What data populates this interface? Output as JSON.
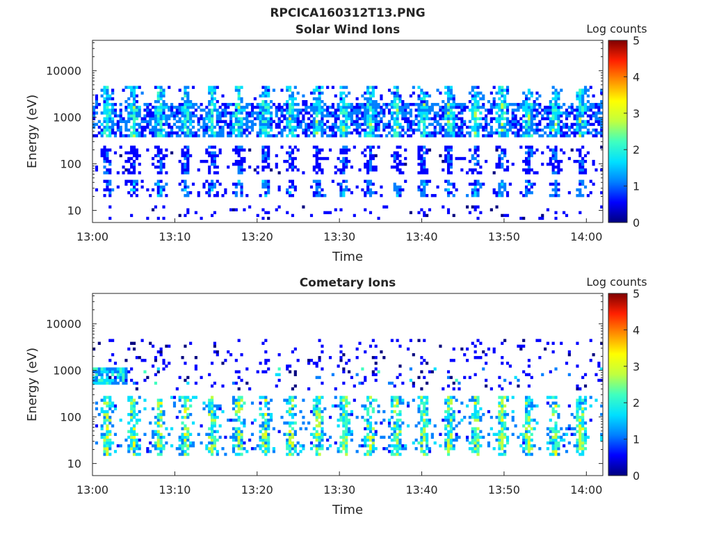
{
  "figure_title": "RPCICA160312T13.PNG",
  "colormap": [
    "#00007f",
    "#0000ff",
    "#0080ff",
    "#00e0ff",
    "#40ffbf",
    "#c0ff40",
    "#ffff00",
    "#ff9000",
    "#ff2000",
    "#7f0000"
  ],
  "chart_data": [
    {
      "type": "heatmap",
      "title": "Solar Wind Ions",
      "xlabel": "Time",
      "ylabel": "Energy (eV)",
      "x_ticks": [
        "13:00",
        "13:10",
        "13:20",
        "13:30",
        "13:40",
        "13:50",
        "14:00"
      ],
      "y_ticks": [
        "10",
        "100",
        "1000",
        "10000"
      ],
      "y_scale": "log",
      "ylim": [
        5.5,
        45000
      ],
      "xlim": [
        "13:00",
        "14:02"
      ],
      "colorbar": {
        "label": "Log counts",
        "ticks": [
          "0",
          "1",
          "2",
          "3",
          "4",
          "5"
        ],
        "range": [
          0,
          5
        ]
      },
      "scan_period_min": 3.2,
      "bands": [
        {
          "energy_lo": 400,
          "energy_hi": 2000,
          "log_counts_peak": 2.5,
          "pattern": "persistent band with periodic brighter patches"
        },
        {
          "energy_lo": 1200,
          "energy_hi": 4500,
          "log_counts_peak": 2.0,
          "pattern": "periodic patches"
        },
        {
          "energy_lo": 60,
          "energy_hi": 250,
          "log_counts_peak": 1.0,
          "pattern": "periodic spikes"
        },
        {
          "energy_lo": 20,
          "energy_hi": 45,
          "log_counts_peak": 1.5,
          "pattern": "periodic spikes"
        },
        {
          "energy_lo": 6,
          "energy_hi": 12,
          "log_counts_peak": 0.5,
          "pattern": "sparse"
        }
      ]
    },
    {
      "type": "heatmap",
      "title": "Cometary Ions",
      "xlabel": "Time",
      "ylabel": "Energy (eV)",
      "x_ticks": [
        "13:00",
        "13:10",
        "13:20",
        "13:30",
        "13:40",
        "13:50",
        "14:00"
      ],
      "y_ticks": [
        "10",
        "100",
        "1000",
        "10000"
      ],
      "y_scale": "log",
      "ylim": [
        5.5,
        45000
      ],
      "xlim": [
        "13:00",
        "14:02"
      ],
      "colorbar": {
        "label": "Log counts",
        "ticks": [
          "0",
          "1",
          "2",
          "3",
          "4",
          "5"
        ],
        "range": [
          0,
          5
        ]
      },
      "scan_period_min": 3.2,
      "bands": [
        {
          "energy_lo": 15,
          "energy_hi": 300,
          "log_counts_peak": 3.0,
          "pattern": "periodic bursts"
        },
        {
          "energy_lo": 20,
          "energy_hi": 45,
          "log_counts_peak": 3.0,
          "pattern": "bright periodic bursts"
        },
        {
          "energy_lo": 500,
          "energy_hi": 1100,
          "log_counts_peak": 2.0,
          "pattern": "early patch at 13:00-13:04"
        },
        {
          "energy_lo": 400,
          "energy_hi": 5000,
          "log_counts_peak": 0.5,
          "pattern": "sparse points"
        }
      ]
    }
  ]
}
